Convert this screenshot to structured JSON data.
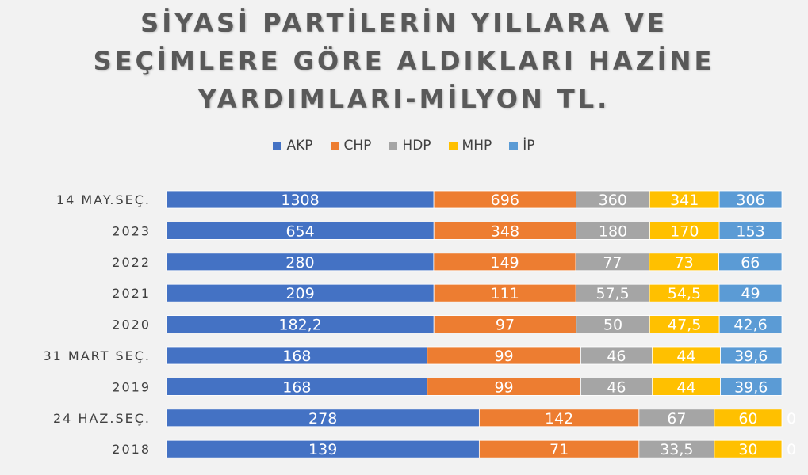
{
  "title_lines": [
    "SİYASİ PARTİLERİN YILLARA VE",
    "SEÇİMLERE GÖRE ALDIKLARI HAZİNE",
    "YARDIMLARI-MİLYON TL."
  ],
  "chart_data": {
    "type": "bar",
    "orientation": "horizontal",
    "stacked": "100%",
    "title": "SİYASİ PARTİLERİN YILLARA VE SEÇİMLERE GÖRE ALDIKLARI HAZİNE YARDIMLARI-MİLYON TL.",
    "legend_position": "top",
    "categories": [
      "14 MAY.SEÇ.",
      "2023",
      "2022",
      "2021",
      "2020",
      "31 MART SEÇ.",
      "2019",
      "24 HAZ.SEÇ.",
      "2018"
    ],
    "series": [
      {
        "name": "AKP",
        "color": "#4472c4",
        "values": [
          1308,
          654,
          280,
          209,
          182.2,
          168,
          168,
          278,
          139
        ],
        "labels": [
          "1308",
          "654",
          "280",
          "209",
          "182,2",
          "168",
          "168",
          "278",
          "139"
        ]
      },
      {
        "name": "CHP",
        "color": "#ed7d31",
        "values": [
          696,
          348,
          149,
          111,
          97,
          99,
          99,
          142,
          71
        ],
        "labels": [
          "696",
          "348",
          "149",
          "111",
          "97",
          "99",
          "99",
          "142",
          "71"
        ]
      },
      {
        "name": "HDP",
        "color": "#a5a5a5",
        "values": [
          360,
          180,
          77,
          57.5,
          50,
          46,
          46,
          67,
          33.5
        ],
        "labels": [
          "360",
          "180",
          "77",
          "57,5",
          "50",
          "46",
          "46",
          "67",
          "33,5"
        ]
      },
      {
        "name": "MHP",
        "color": "#ffc000",
        "values": [
          341,
          170,
          73,
          54.5,
          47.5,
          44,
          44,
          60,
          30
        ],
        "labels": [
          "341",
          "170",
          "73",
          "54,5",
          "47,5",
          "44",
          "44",
          "60",
          "30"
        ]
      },
      {
        "name": "İP",
        "color": "#5b9bd5",
        "values": [
          306,
          153,
          66,
          49,
          42.6,
          39.6,
          39.6,
          0,
          0
        ],
        "labels": [
          "306",
          "153",
          "66",
          "49",
          "42,6",
          "39,6",
          "39,6",
          "0",
          "0"
        ]
      }
    ]
  }
}
